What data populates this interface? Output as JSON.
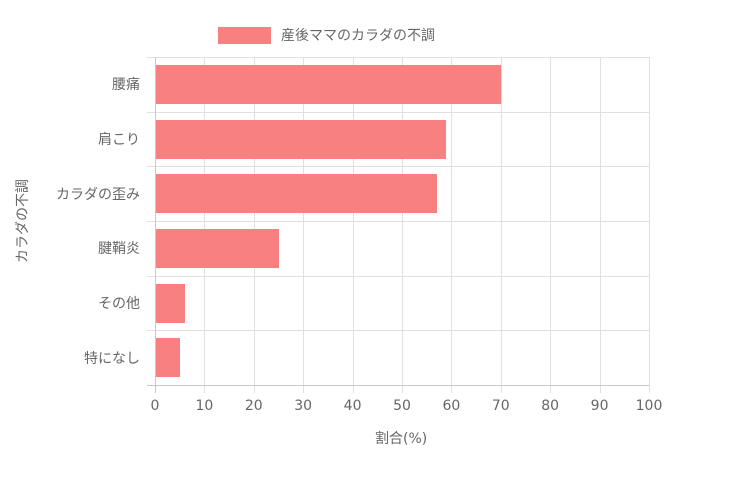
{
  "chart_data": {
    "type": "bar",
    "orientation": "horizontal",
    "title": "",
    "categories": [
      "腰痛",
      "肩こり",
      "カラダの歪み",
      "腱鞘炎",
      "その他",
      "特になし"
    ],
    "series": [
      {
        "name": "産後ママのカラダの不調",
        "values": [
          70,
          59,
          57,
          25,
          6,
          5
        ],
        "color": "#f88080"
      }
    ],
    "xlabel": "割合(%)",
    "ylabel": "カラダの不調",
    "xlim": [
      0,
      100
    ],
    "xticks": [
      "0",
      "10",
      "20",
      "30",
      "40",
      "50",
      "60",
      "70",
      "80",
      "90",
      "100"
    ],
    "grid": true,
    "legend_position": "top"
  },
  "legend": {
    "label": "産後ママのカラダの不調",
    "color": "#f88080"
  },
  "axes": {
    "x_title": "割合(%)",
    "y_title": "カラダの不調"
  }
}
